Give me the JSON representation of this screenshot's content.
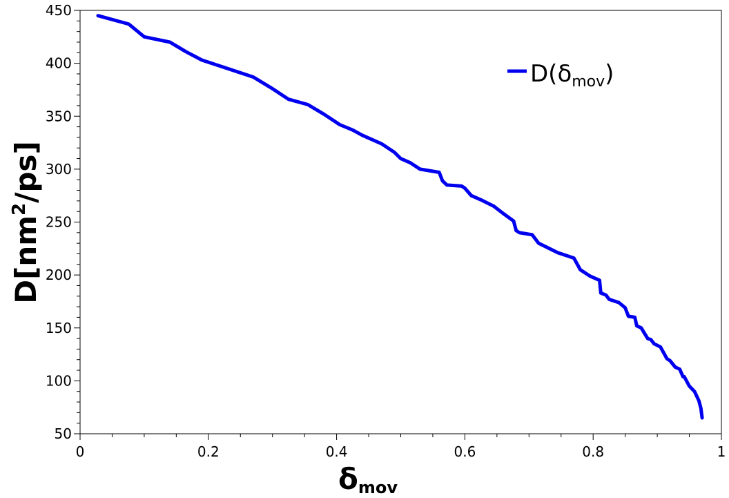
{
  "chart_data": {
    "type": "line",
    "title": "",
    "xlabel": {
      "main": "δ",
      "sub": "mov"
    },
    "ylabel": {
      "main": "D[nm",
      "sup": "2",
      "rest": "/ps]"
    },
    "xlim": [
      0,
      1
    ],
    "ylim": [
      50,
      450
    ],
    "xticks": [
      0,
      0.2,
      0.4,
      0.6,
      0.8,
      1
    ],
    "xtick_labels": [
      "0",
      "0.2",
      "0.4",
      "0.6",
      "0.8",
      "1"
    ],
    "yticks": [
      50,
      100,
      150,
      200,
      250,
      300,
      350,
      400,
      450
    ],
    "ytick_labels": [
      "50",
      "100",
      "150",
      "200",
      "250",
      "300",
      "350",
      "400",
      "450"
    ],
    "grid": false,
    "legend_position": "top-right",
    "series": [
      {
        "name": {
          "main": "D(δ",
          "sub": "mov",
          "close": ")"
        },
        "color": "#0000ee",
        "x": [
          0.028,
          0.076,
          0.1,
          0.14,
          0.165,
          0.19,
          0.23,
          0.27,
          0.3,
          0.325,
          0.355,
          0.38,
          0.405,
          0.425,
          0.44,
          0.47,
          0.49,
          0.5,
          0.515,
          0.53,
          0.56,
          0.565,
          0.572,
          0.595,
          0.6,
          0.61,
          0.625,
          0.645,
          0.66,
          0.676,
          0.68,
          0.685,
          0.705,
          0.715,
          0.745,
          0.77,
          0.78,
          0.795,
          0.81,
          0.812,
          0.82,
          0.825,
          0.84,
          0.85,
          0.855,
          0.865,
          0.868,
          0.875,
          0.88,
          0.885,
          0.89,
          0.895,
          0.905,
          0.915,
          0.92,
          0.928,
          0.935,
          0.94,
          0.942,
          0.95,
          0.958,
          0.962,
          0.965,
          0.968,
          0.97
        ],
        "y": [
          445,
          437,
          425,
          420,
          411,
          403,
          395,
          387,
          376,
          366,
          361,
          352,
          342,
          337,
          332,
          324,
          316,
          310,
          306,
          300,
          297,
          289,
          285,
          284,
          282,
          275,
          271,
          265,
          258,
          251,
          242,
          240,
          238,
          230,
          221,
          216,
          205,
          199,
          195,
          183,
          181,
          177,
          174,
          169,
          161,
          160,
          152,
          150,
          145,
          140,
          139,
          135,
          132,
          121,
          119,
          113,
          111,
          104,
          104,
          95,
          90,
          85,
          81,
          74,
          65
        ]
      }
    ]
  }
}
